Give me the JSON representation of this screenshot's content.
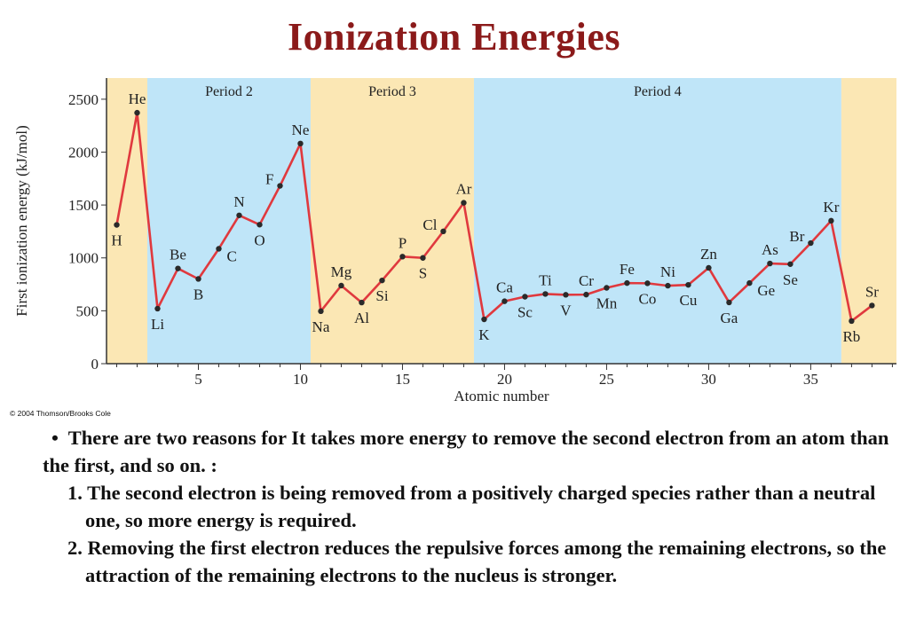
{
  "slide": {
    "title": "Ionization Energies",
    "copyright": "© 2004 Thomson/Brooks Cole",
    "bullet_symbol": "•",
    "bullet_text": "There are two reasons for It takes more energy to remove the second electron from an atom than the first, and so on. :",
    "reasons": [
      "1. The second electron is being removed from a positively charged species rather than a neutral one, so more energy is required.",
      "2. Removing the first electron reduces the repulsive forces among the remaining electrons, so the attraction of the remaining electrons to the nucleus is stronger."
    ]
  },
  "chart_data": {
    "type": "line",
    "xlabel": "Atomic number",
    "ylabel": "First ionization energy (kJ/mol)",
    "xlim": [
      0.5,
      39.2
    ],
    "ylim": [
      0,
      2700
    ],
    "xticks": [
      5,
      10,
      15,
      20,
      25,
      30,
      35
    ],
    "yticks": [
      0,
      500,
      1000,
      1500,
      2000,
      2500
    ],
    "grid": false,
    "colors": {
      "line": "#e0393e",
      "point": "#2a2a2a",
      "band_yellow": "#fbe7b4",
      "band_blue": "#bfe5f8"
    },
    "bands": [
      {
        "label": "",
        "from": 0.5,
        "to": 2.5,
        "color": "yellow"
      },
      {
        "label": "Period 2",
        "from": 2.5,
        "to": 10.5,
        "color": "blue"
      },
      {
        "label": "Period 3",
        "from": 10.5,
        "to": 18.5,
        "color": "yellow"
      },
      {
        "label": "Period 4",
        "from": 18.5,
        "to": 36.5,
        "color": "blue"
      },
      {
        "label": "",
        "from": 36.5,
        "to": 39.2,
        "color": "yellow"
      }
    ],
    "points": [
      {
        "z": 1,
        "symbol": "H",
        "ie": 1312,
        "label_pos": "below"
      },
      {
        "z": 2,
        "symbol": "He",
        "ie": 2372,
        "label_pos": "above"
      },
      {
        "z": 3,
        "symbol": "Li",
        "ie": 520,
        "label_pos": "below"
      },
      {
        "z": 4,
        "symbol": "Be",
        "ie": 900,
        "label_pos": "above"
      },
      {
        "z": 5,
        "symbol": "B",
        "ie": 801,
        "label_pos": "below"
      },
      {
        "z": 6,
        "symbol": "C",
        "ie": 1086,
        "label_pos": "right"
      },
      {
        "z": 7,
        "symbol": "N",
        "ie": 1402,
        "label_pos": "above"
      },
      {
        "z": 8,
        "symbol": "O",
        "ie": 1314,
        "label_pos": "below"
      },
      {
        "z": 9,
        "symbol": "F",
        "ie": 1681,
        "label_pos": "left"
      },
      {
        "z": 10,
        "symbol": "Ne",
        "ie": 2081,
        "label_pos": "above"
      },
      {
        "z": 11,
        "symbol": "Na",
        "ie": 496,
        "label_pos": "below"
      },
      {
        "z": 12,
        "symbol": "Mg",
        "ie": 738,
        "label_pos": "above"
      },
      {
        "z": 13,
        "symbol": "Al",
        "ie": 578,
        "label_pos": "below"
      },
      {
        "z": 14,
        "symbol": "Si",
        "ie": 787,
        "label_pos": "below"
      },
      {
        "z": 15,
        "symbol": "P",
        "ie": 1012,
        "label_pos": "above"
      },
      {
        "z": 16,
        "symbol": "S",
        "ie": 1000,
        "label_pos": "below"
      },
      {
        "z": 17,
        "symbol": "Cl",
        "ie": 1251,
        "label_pos": "left"
      },
      {
        "z": 18,
        "symbol": "Ar",
        "ie": 1521,
        "label_pos": "above"
      },
      {
        "z": 19,
        "symbol": "K",
        "ie": 419,
        "label_pos": "below"
      },
      {
        "z": 20,
        "symbol": "Ca",
        "ie": 590,
        "label_pos": "above"
      },
      {
        "z": 21,
        "symbol": "Sc",
        "ie": 633,
        "label_pos": "below"
      },
      {
        "z": 22,
        "symbol": "Ti",
        "ie": 659,
        "label_pos": "above"
      },
      {
        "z": 23,
        "symbol": "V",
        "ie": 651,
        "label_pos": "below"
      },
      {
        "z": 24,
        "symbol": "Cr",
        "ie": 653,
        "label_pos": "above"
      },
      {
        "z": 25,
        "symbol": "Mn",
        "ie": 717,
        "label_pos": "below"
      },
      {
        "z": 26,
        "symbol": "Fe",
        "ie": 762,
        "label_pos": "above"
      },
      {
        "z": 27,
        "symbol": "Co",
        "ie": 760,
        "label_pos": "below"
      },
      {
        "z": 28,
        "symbol": "Ni",
        "ie": 737,
        "label_pos": "above"
      },
      {
        "z": 29,
        "symbol": "Cu",
        "ie": 745,
        "label_pos": "below"
      },
      {
        "z": 30,
        "symbol": "Zn",
        "ie": 906,
        "label_pos": "above"
      },
      {
        "z": 31,
        "symbol": "Ga",
        "ie": 579,
        "label_pos": "below"
      },
      {
        "z": 32,
        "symbol": "Ge",
        "ie": 762,
        "label_pos": "right"
      },
      {
        "z": 33,
        "symbol": "As",
        "ie": 947,
        "label_pos": "above"
      },
      {
        "z": 34,
        "symbol": "Se",
        "ie": 941,
        "label_pos": "below"
      },
      {
        "z": 35,
        "symbol": "Br",
        "ie": 1140,
        "label_pos": "left"
      },
      {
        "z": 36,
        "symbol": "Kr",
        "ie": 1351,
        "label_pos": "above"
      },
      {
        "z": 37,
        "symbol": "Rb",
        "ie": 403,
        "label_pos": "below"
      },
      {
        "z": 38,
        "symbol": "Sr",
        "ie": 550,
        "label_pos": "above"
      }
    ]
  }
}
